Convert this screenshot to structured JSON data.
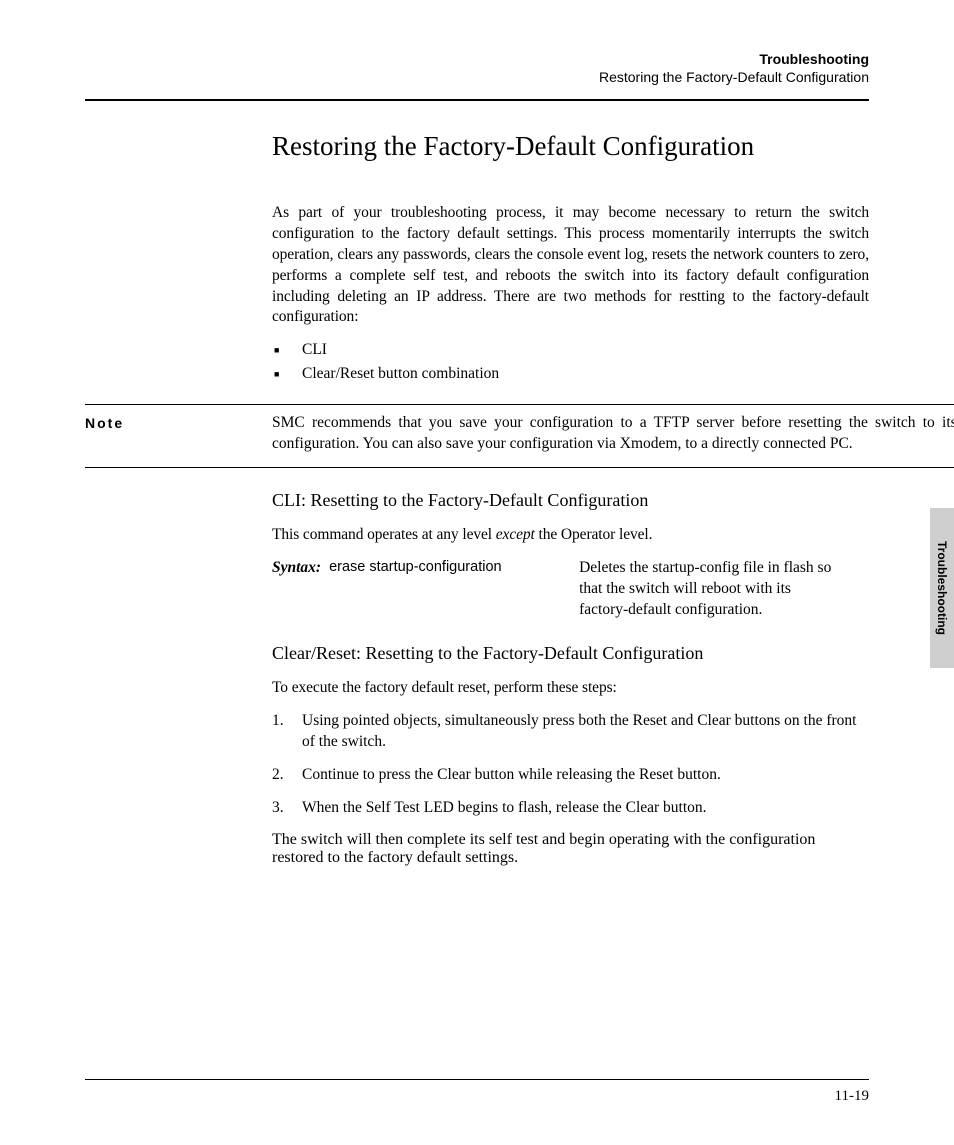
{
  "header": {
    "chapter": "Troubleshooting",
    "section": "Restoring the Factory-Default Configuration"
  },
  "title": "Restoring the Factory-Default Configuration",
  "intro": "As part of your troubleshooting process, it may become necessary to return the switch configuration to the factory default settings. This process momentarily interrupts the switch operation, clears any passwords, clears the console event log, resets the network counters to zero, performs a complete self test, and reboots the switch into its factory default configuration including deleting an IP address. There are two methods for restting to the factory-default configuration:",
  "bullets": [
    "CLI",
    "Clear/Reset button combination"
  ],
  "note": {
    "label": "Note",
    "body": "SMC recommends that you save your configuration to a TFTP server before resetting the switch to its factory-default configuration. You can also save your configuration via Xmodem, to a directly connected PC."
  },
  "cli": {
    "heading": "CLI: Resetting to the Factory-Default Configuration",
    "lead_pre": "This command operates at any level ",
    "lead_em": "except",
    "lead_post": " the Operator level.",
    "syntax_label": "Syntax:",
    "syntax_cmd": "erase startup-configuration",
    "syntax_desc": "Deletes the startup-config file in flash so that the switch will reboot with its factory-default configuration."
  },
  "clearreset": {
    "heading": "Clear/Reset: Resetting to the Factory-Default Configuration",
    "lead": "To execute the factory default reset, perform these steps:",
    "steps": [
      "Using pointed objects, simultaneously press both the Reset and Clear buttons on the front of the switch.",
      "Continue to press the Clear button while releasing the Reset button.",
      "When the Self Test LED begins to flash, release the Clear button."
    ],
    "followup": "The switch will then complete its self test and begin operating with the configuration restored to the factory default settings."
  },
  "side_tab": "Troubleshooting",
  "page_number": "11-19"
}
